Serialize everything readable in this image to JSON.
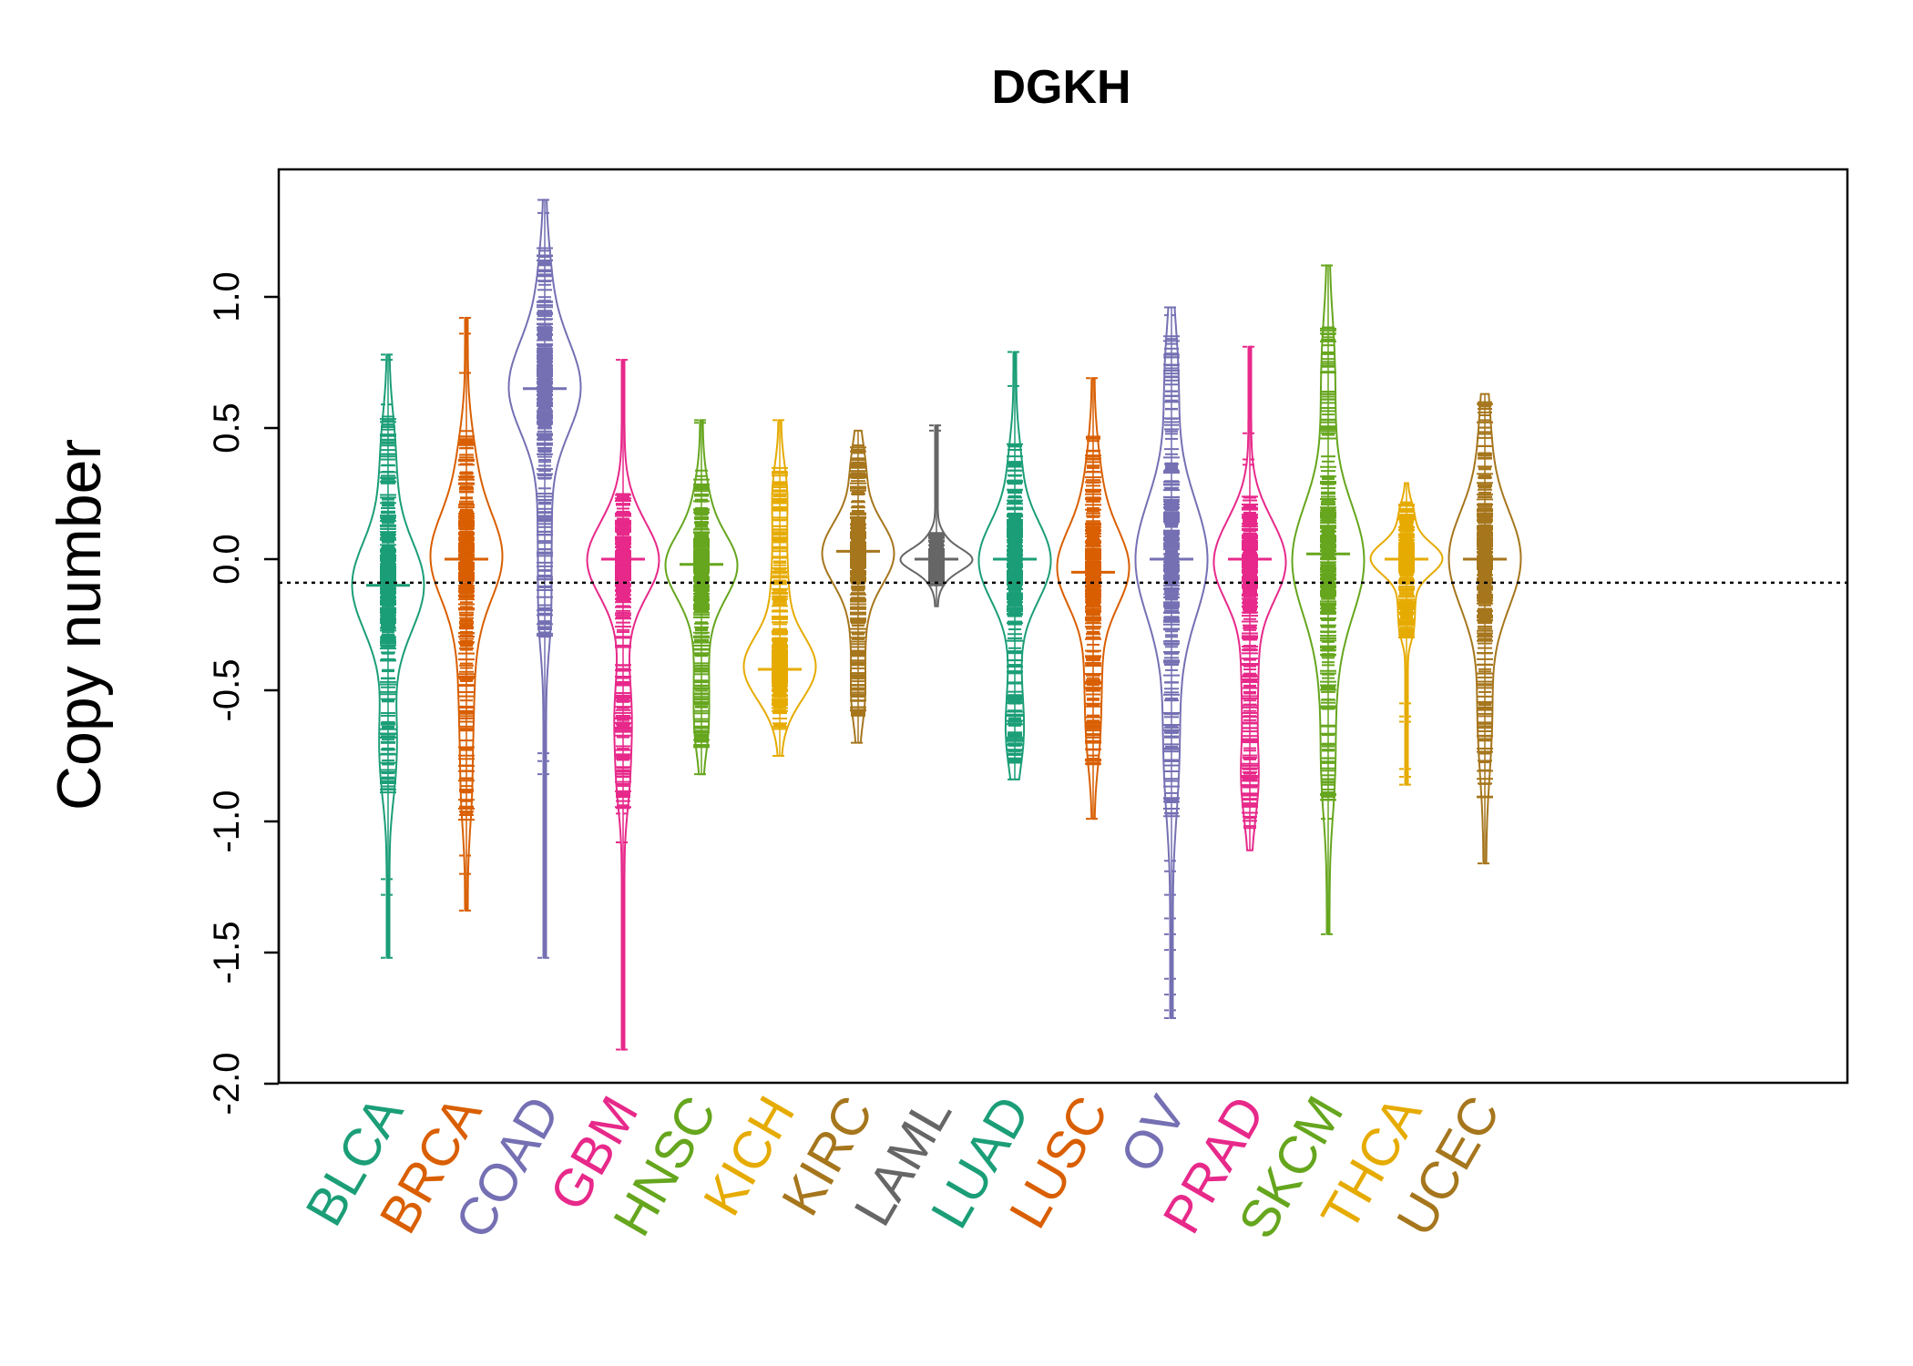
{
  "chart_data": {
    "type": "beanplot",
    "title": "DGKH",
    "xlabel": "",
    "ylabel": "Copy number",
    "ylim": [
      -2.0,
      1.5
    ],
    "yticks": [
      -2.0,
      -1.5,
      -1.0,
      -0.5,
      0.0,
      0.5,
      1.0
    ],
    "ytick_labels": [
      "-2.0",
      "-1.5",
      "-1.0",
      "-0.5",
      "0.0",
      "0.5",
      "1.0"
    ],
    "reference_line": -0.09,
    "grid": false,
    "categories": [
      "BLCA",
      "BRCA",
      "COAD",
      "GBM",
      "HNSC",
      "KICH",
      "KIRC",
      "LAML",
      "LUAD",
      "LUSC",
      "OV",
      "PRAD",
      "SKCM",
      "THCA",
      "UCEC"
    ],
    "colors": [
      "#1B9E77",
      "#D95F02",
      "#7570B3",
      "#E7298A",
      "#66A61E",
      "#E6AB02",
      "#A6761D",
      "#666666",
      "#1B9E77",
      "#D95F02",
      "#7570B3",
      "#E7298A",
      "#66A61E",
      "#E6AB02",
      "#A6761D"
    ],
    "series": [
      {
        "category": "BLCA",
        "min": -1.52,
        "max": 0.78,
        "dense_low": -0.9,
        "dense_high": 0.55,
        "mode": -0.1,
        "outliers": [
          0.78,
          0.76,
          0.59,
          -1.22,
          -1.28,
          -1.52
        ]
      },
      {
        "category": "BRCA",
        "min": -1.34,
        "max": 0.92,
        "dense_low": -1.0,
        "dense_high": 0.5,
        "mode": 0.0,
        "outliers": [
          0.92,
          0.86,
          0.71,
          -1.13,
          -1.2,
          -1.34
        ]
      },
      {
        "category": "COAD",
        "min": -1.52,
        "max": 1.37,
        "dense_low": -0.3,
        "dense_high": 1.2,
        "mode": 0.65,
        "outliers": [
          1.37,
          1.32,
          -0.74,
          -0.77,
          -0.82,
          -1.52
        ]
      },
      {
        "category": "GBM",
        "min": -1.87,
        "max": 0.76,
        "dense_low": -0.95,
        "dense_high": 0.25,
        "mode": 0.0,
        "outliers": [
          0.76,
          -0.97,
          -1.08,
          -1.87
        ]
      },
      {
        "category": "HNSC",
        "min": -0.82,
        "max": 0.53,
        "dense_low": -0.72,
        "dense_high": 0.35,
        "mode": -0.02,
        "outliers": [
          0.53,
          0.52,
          -0.82
        ]
      },
      {
        "category": "KICH",
        "min": -0.75,
        "max": 0.53,
        "dense_low": -0.65,
        "dense_high": 0.35,
        "mode": -0.42,
        "outliers": [
          0.53,
          -0.75
        ]
      },
      {
        "category": "KIRC",
        "min": -0.7,
        "max": 0.49,
        "dense_low": -0.6,
        "dense_high": 0.45,
        "mode": 0.03,
        "outliers": [
          -0.7
        ]
      },
      {
        "category": "LAML",
        "min": -0.18,
        "max": 0.51,
        "dense_low": -0.1,
        "dense_high": 0.1,
        "mode": 0.0,
        "outliers": [
          0.51,
          0.49
        ]
      },
      {
        "category": "LUAD",
        "min": -0.84,
        "max": 0.79,
        "dense_low": -0.78,
        "dense_high": 0.45,
        "mode": 0.0,
        "outliers": [
          0.79,
          0.66,
          -0.84
        ]
      },
      {
        "category": "LUSC",
        "min": -0.99,
        "max": 0.69,
        "dense_low": -0.8,
        "dense_high": 0.47,
        "mode": -0.05,
        "outliers": [
          0.69,
          -0.99
        ]
      },
      {
        "category": "OV",
        "min": -1.75,
        "max": 0.96,
        "dense_low": -1.0,
        "dense_high": 0.85,
        "mode": 0.0,
        "outliers": [
          0.96,
          0.93,
          -1.15,
          -1.19,
          -1.28,
          -1.37,
          -1.43,
          -1.49,
          -1.6,
          -1.66,
          -1.72,
          -1.75
        ]
      },
      {
        "category": "PRAD",
        "min": -1.11,
        "max": 0.81,
        "dense_low": -1.05,
        "dense_high": 0.25,
        "mode": 0.0,
        "outliers": [
          0.81,
          0.48,
          0.38,
          0.36
        ]
      },
      {
        "category": "SKCM",
        "min": -1.43,
        "max": 1.12,
        "dense_low": -0.95,
        "dense_high": 0.9,
        "mode": 0.02,
        "outliers": [
          1.12,
          -0.99,
          -1.43
        ]
      },
      {
        "category": "THCA",
        "min": -0.86,
        "max": 0.29,
        "dense_low": -0.3,
        "dense_high": 0.22,
        "mode": 0.0,
        "outliers": [
          -0.55,
          -0.6,
          -0.62,
          -0.8,
          -0.83,
          -0.86
        ]
      },
      {
        "category": "UCEC",
        "min": -1.16,
        "max": 0.63,
        "dense_low": -0.92,
        "dense_high": 0.6,
        "mode": 0.0,
        "outliers": [
          -1.16
        ]
      }
    ]
  }
}
